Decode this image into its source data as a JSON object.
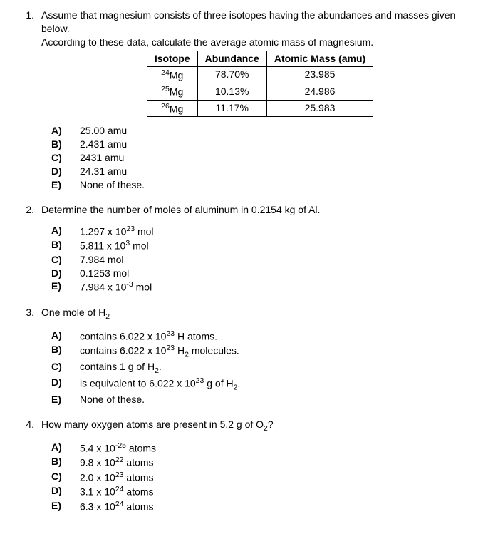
{
  "questions": [
    {
      "number": "1.",
      "stem_line1": "Assume that magnesium consists of three isotopes having the abundances and masses given below.",
      "stem_line2": "According to these data, calculate the average atomic mass of magnesium.",
      "table": {
        "headers": [
          "Isotope",
          "Abundance",
          "Atomic Mass (amu)"
        ],
        "rows": [
          {
            "isotope_pre": "24",
            "isotope_sym": "Mg",
            "abundance": "78.70%",
            "mass": "23.985"
          },
          {
            "isotope_pre": "25",
            "isotope_sym": "Mg",
            "abundance": "10.13%",
            "mass": "24.986"
          },
          {
            "isotope_pre": "26",
            "isotope_sym": "Mg",
            "abundance": "11.17%",
            "mass": "25.983"
          }
        ]
      },
      "choices": [
        {
          "letter": "A)",
          "text": "25.00 amu"
        },
        {
          "letter": "B)",
          "text": "2.431 amu"
        },
        {
          "letter": "C)",
          "text": "2431 amu"
        },
        {
          "letter": "D)",
          "text": "24.31 amu"
        },
        {
          "letter": "E)",
          "text": "None of these."
        }
      ]
    },
    {
      "number": "2.",
      "stem_line1": "Determine the number of moles of aluminum in 0.2154 kg of Al.",
      "choices": [
        {
          "letter": "A)",
          "html": "1.297 x 10<sup>23</sup> mol"
        },
        {
          "letter": "B)",
          "html": "5.811 x 10<sup>3</sup> mol"
        },
        {
          "letter": "C)",
          "html": "7.984 mol"
        },
        {
          "letter": "D)",
          "html": "0.1253 mol"
        },
        {
          "letter": "E)",
          "html": "7.984 x 10<sup>-3</sup> mol"
        }
      ]
    },
    {
      "number": "3.",
      "stem_html": "One mole of H<sub>2</sub>",
      "choices": [
        {
          "letter": "A)",
          "html": "contains 6.022 x 10<sup>23</sup> H atoms."
        },
        {
          "letter": "B)",
          "html": "contains 6.022 x 10<sup>23</sup> H<sub>2</sub> molecules."
        },
        {
          "letter": "C)",
          "html": "contains 1 g of H<sub>2</sub>."
        },
        {
          "letter": "D)",
          "html": "is equivalent to 6.022 x 10<sup>23</sup> g of H<sub>2</sub>."
        },
        {
          "letter": "E)",
          "html": "None of these."
        }
      ]
    },
    {
      "number": "4.",
      "stem_html": "How many oxygen atoms are present in 5.2 g of O<sub>2</sub>?",
      "choices": [
        {
          "letter": "A)",
          "html": "5.4 x 10<sup>-25</sup> atoms"
        },
        {
          "letter": "B)",
          "html": "9.8 x 10<sup>22</sup> atoms"
        },
        {
          "letter": "C)",
          "html": "2.0 x 10<sup>23</sup> atoms"
        },
        {
          "letter": "D)",
          "html": "3.1 x 10<sup>24</sup> atoms"
        },
        {
          "letter": "E)",
          "html": "6.3 x 10<sup>24</sup> atoms"
        }
      ]
    }
  ]
}
